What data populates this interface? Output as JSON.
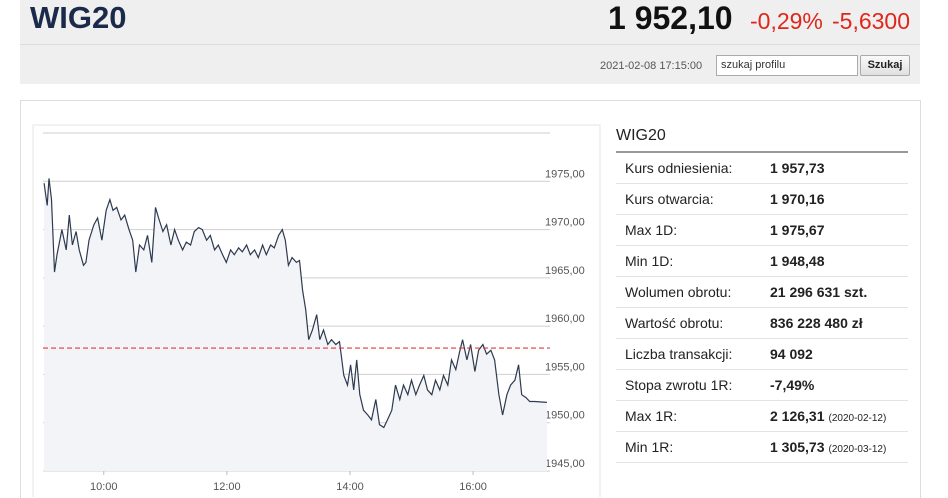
{
  "header": {
    "title": "WIG20",
    "price": "1 952,10",
    "change_pct": "-0,29%",
    "change": "-5,6300",
    "timestamp": "2021-02-08 17:15:00",
    "search_placeholder": "szukaj profilu",
    "search_button": "Szukaj"
  },
  "chart_data": {
    "type": "line",
    "color": "#2d3a4f",
    "area_color": "#f3f4f7",
    "x": [
      9.03,
      9.08,
      9.11,
      9.15,
      9.2,
      9.24,
      9.32,
      9.39,
      9.44,
      9.49,
      9.55,
      9.6,
      9.67,
      9.71,
      9.76,
      9.84,
      9.9,
      9.97,
      10.04,
      10.1,
      10.15,
      10.21,
      10.28,
      10.34,
      10.41,
      10.47,
      10.52,
      10.58,
      10.65,
      10.71,
      10.78,
      10.84,
      10.89,
      10.96,
      11.02,
      11.09,
      11.15,
      11.21,
      11.28,
      11.34,
      11.41,
      11.47,
      11.54,
      11.6,
      11.67,
      11.73,
      11.8,
      11.86,
      11.93,
      11.99,
      12.06,
      12.12,
      12.19,
      12.25,
      12.32,
      12.38,
      12.45,
      12.51,
      12.58,
      12.64,
      12.71,
      12.77,
      12.84,
      12.9,
      12.95,
      13.0,
      13.06,
      13.13,
      13.18,
      13.23,
      13.28,
      13.33,
      13.39,
      13.46,
      13.51,
      13.57,
      13.64,
      13.7,
      13.77,
      13.83,
      13.9,
      13.96,
      14.01,
      14.06,
      14.11,
      14.16,
      14.22,
      14.29,
      14.35,
      14.42,
      14.48,
      14.55,
      14.61,
      14.68,
      14.74,
      14.81,
      14.87,
      14.94,
      15.0,
      15.07,
      15.13,
      15.2,
      15.26,
      15.33,
      15.39,
      15.46,
      15.52,
      15.59,
      15.65,
      15.72,
      15.78,
      15.83,
      15.9,
      15.96,
      16.03,
      16.09,
      16.16,
      16.22,
      16.29,
      16.35,
      16.42,
      16.48,
      16.55,
      16.61,
      16.68,
      16.74,
      16.79,
      16.86,
      16.92,
      17.0,
      17.2
    ],
    "values": [
      1974.8,
      1972.5,
      1975.3,
      1973.1,
      1965.6,
      1967.4,
      1970,
      1967.9,
      1971.5,
      1968.4,
      1969.8,
      1967.9,
      1966.3,
      1966.6,
      1968.9,
      1970.5,
      1971.2,
      1968.9,
      1972,
      1973.1,
      1972,
      1972.3,
      1971,
      1971.5,
      1970,
      1968.9,
      1965.6,
      1968.4,
      1967.9,
      1969.4,
      1966.6,
      1972.3,
      1971.2,
      1969.8,
      1970.5,
      1968.4,
      1970,
      1968.9,
      1967.9,
      1968.7,
      1968.4,
      1969.8,
      1970.2,
      1970,
      1968.9,
      1969.4,
      1967.9,
      1968.4,
      1967.4,
      1966.6,
      1967.9,
      1967.4,
      1968.1,
      1967.7,
      1968.4,
      1967.4,
      1967.9,
      1967.1,
      1968.4,
      1967.4,
      1968.4,
      1968.1,
      1969.4,
      1970,
      1968.9,
      1966.3,
      1967.1,
      1966.6,
      1966.8,
      1963.7,
      1961.7,
      1958.6,
      1959.6,
      1961.2,
      1958.6,
      1959.6,
      1958.1,
      1958.6,
      1958.1,
      1958.4,
      1954.9,
      1953.9,
      1956,
      1953.4,
      1956.5,
      1952.9,
      1951.3,
      1950.8,
      1950.3,
      1952.4,
      1949.8,
      1949.5,
      1950.3,
      1951.3,
      1953.9,
      1952.4,
      1953.9,
      1952.9,
      1954.4,
      1952.9,
      1953.9,
      1954.9,
      1953.4,
      1952.9,
      1954.4,
      1953.4,
      1954.9,
      1953.9,
      1956.5,
      1955.5,
      1957.3,
      1958.6,
      1956.5,
      1958.1,
      1955.3,
      1957.5,
      1958.1,
      1957.1,
      1957.5,
      1956.5,
      1952.9,
      1950.8,
      1952.9,
      1953.9,
      1954.4,
      1956,
      1952.9,
      1952.6,
      1952.2,
      1952.2,
      1952.1
    ],
    "reference": 1957.73,
    "reference_color": "#e0393e",
    "xlim": [
      8.85,
      17.25
    ],
    "xticks": [
      {
        "value": 10,
        "label": "10:00"
      },
      {
        "value": 12,
        "label": "12:00"
      },
      {
        "value": 14,
        "label": "14:00"
      },
      {
        "value": 16,
        "label": "16:00"
      }
    ],
    "ylim": [
      1945,
      1980
    ],
    "yticks": [
      {
        "value": 1945,
        "label": "1945,00"
      },
      {
        "value": 1950,
        "label": "1950,00"
      },
      {
        "value": 1955,
        "label": "1955,00"
      },
      {
        "value": 1960,
        "label": "1960,00"
      },
      {
        "value": 1965,
        "label": "1965,00"
      },
      {
        "value": 1970,
        "label": "1970,00"
      },
      {
        "value": 1975,
        "label": "1975,00"
      }
    ],
    "grid": true
  },
  "stats": {
    "title": "WIG20",
    "rows": [
      {
        "label": "Kurs odniesienia:",
        "value": "1 957,73"
      },
      {
        "label": "Kurs otwarcia:",
        "value": "1 970,16"
      },
      {
        "label": "Max 1D:",
        "value": "1 975,67"
      },
      {
        "label": "Min 1D:",
        "value": "1 948,48"
      },
      {
        "label": "Wolumen obrotu:",
        "value": "21 296 631 szt."
      },
      {
        "label": "Wartość obrotu:",
        "value": "836 228 480 zł"
      },
      {
        "label": "Liczba transakcji:",
        "value": "94 092"
      },
      {
        "label": "Stopa zwrotu 1R:",
        "value": "-7,49%"
      },
      {
        "label": "Max 1R:",
        "value": "2 126,31",
        "date": "(2020-02-12)"
      },
      {
        "label": "Min 1R:",
        "value": "1 305,73",
        "date": "(2020-03-12)"
      }
    ]
  }
}
